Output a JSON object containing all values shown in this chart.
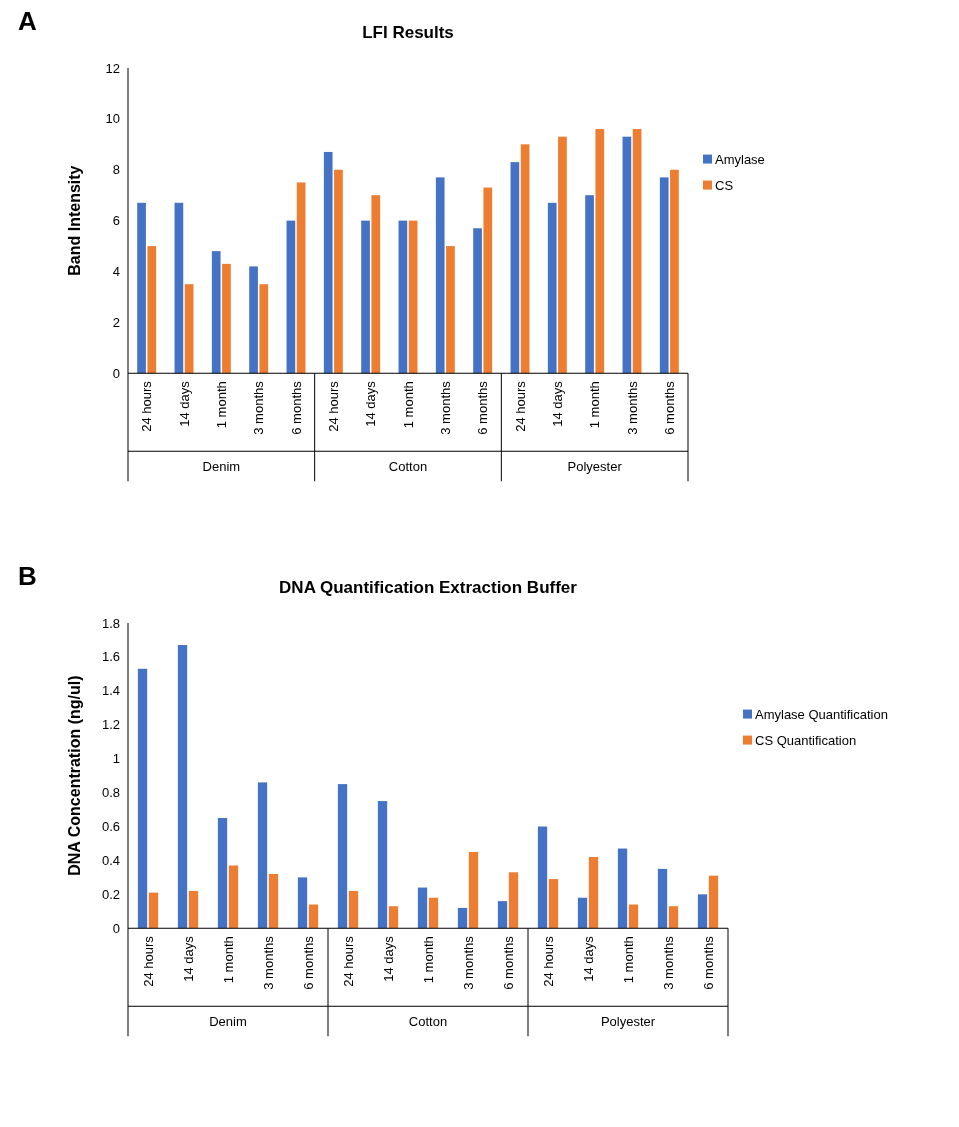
{
  "chart_data": [
    {
      "type": "bar",
      "title": "LFI Results",
      "ylabel": "Band Intensity",
      "annotations": [
        "A",
        "Denim",
        "Cotton",
        "Polyester"
      ],
      "categories": [
        "24 hours",
        "14 days",
        "1 month",
        "3 months",
        "6 months",
        "24 hours",
        "14 days",
        "1 month",
        "3 months",
        "6 months",
        "24 hours",
        "14 days",
        "1 month",
        "3 months",
        "6 months"
      ],
      "series": [
        {
          "name": "Amylase",
          "color": "#4472c4",
          "values": [
            6.7,
            6.7,
            4.8,
            4.2,
            6,
            8.7,
            6,
            6,
            7.7,
            5.7,
            8.3,
            6.7,
            7,
            9.3,
            7.7
          ]
        },
        {
          "name": "CS",
          "color": "#ed7d31",
          "values": [
            5,
            3.5,
            4.3,
            3.5,
            7.5,
            8,
            7,
            6,
            5,
            7.3,
            9,
            9.3,
            9.6,
            9.6,
            8
          ]
        }
      ],
      "ylim": [
        0,
        12
      ],
      "yticks": [
        0,
        2,
        4,
        6,
        8,
        10,
        12
      ],
      "grid": false,
      "legend": "right"
    },
    {
      "type": "bar",
      "title": "DNA Quantification Extraction Buffer",
      "ylabel": "DNA Concentration (ng/ul)",
      "annotations": [
        "B",
        "Denim",
        "Cotton",
        "Polyester"
      ],
      "categories": [
        "24 hours",
        "14 days",
        "1 month",
        "3 months",
        "6 months",
        "24 hours",
        "14 days",
        "1 month",
        "3 months",
        "6 months",
        "24 hours",
        "14 days",
        "1 month",
        "3 months",
        "6 months"
      ],
      "series": [
        {
          "name": "Amylase Quantification",
          "color": "#4472c4",
          "values": [
            1.53,
            1.67,
            0.65,
            0.86,
            0.3,
            0.85,
            0.75,
            0.24,
            0.12,
            0.16,
            0.6,
            0.18,
            0.47,
            0.35,
            0.2
          ]
        },
        {
          "name": "CS Quantification",
          "color": "#ed7d31",
          "values": [
            0.21,
            0.22,
            0.37,
            0.32,
            0.14,
            0.22,
            0.13,
            0.18,
            0.45,
            0.33,
            0.29,
            0.42,
            0.14,
            0.13,
            0.31
          ]
        }
      ],
      "ylim": [
        0,
        1.8
      ],
      "yticks": [
        0,
        0.2,
        0.4,
        0.6,
        0.8,
        1,
        1.2,
        1.4,
        1.6,
        1.8
      ],
      "grid": false,
      "legend": "right"
    }
  ]
}
